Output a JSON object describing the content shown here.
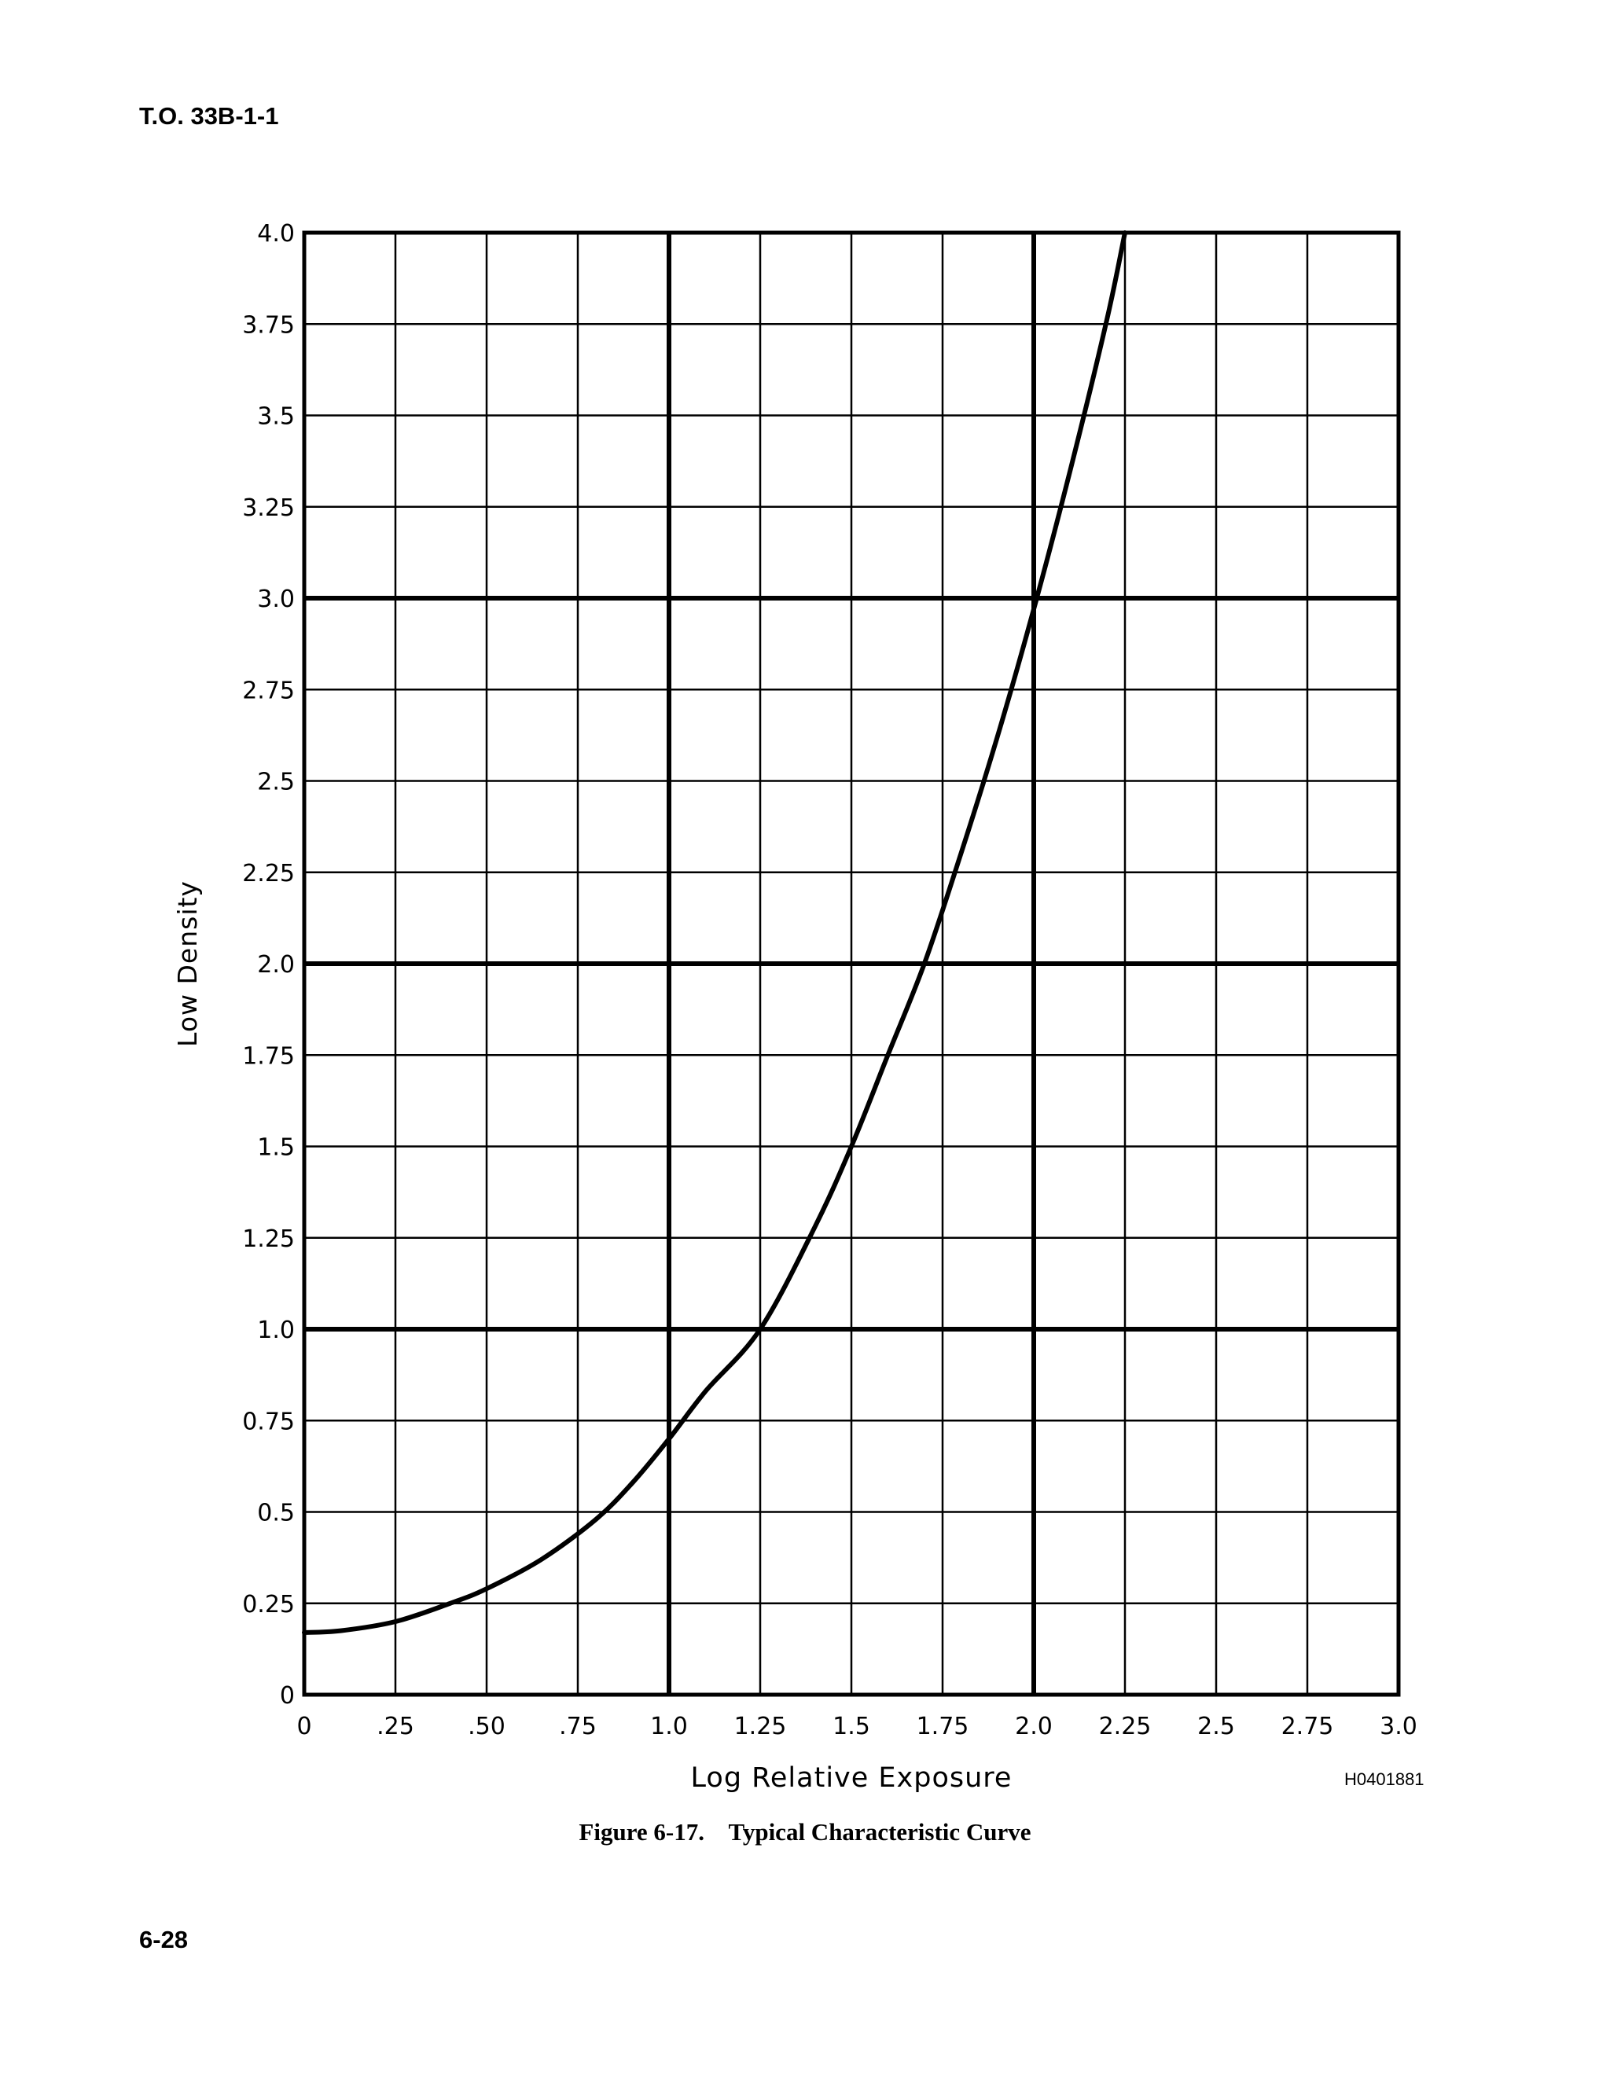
{
  "page": {
    "header": "T.O. 33B-1-1",
    "page_number": "6-28",
    "figure_id": "H0401881",
    "caption_number": "Figure 6-17.",
    "caption_title": "Typical Characteristic Curve"
  },
  "chart_data": {
    "type": "line",
    "xlabel": "Log Relative Exposure",
    "ylabel": "Low Density",
    "xlim": [
      0,
      3.0
    ],
    "ylim": [
      0,
      4.0
    ],
    "grid": true,
    "x_ticks": [
      {
        "value": 0,
        "label": "0"
      },
      {
        "value": 0.25,
        "label": ".25"
      },
      {
        "value": 0.5,
        "label": ".50"
      },
      {
        "value": 0.75,
        "label": ".75"
      },
      {
        "value": 1.0,
        "label": "1.0"
      },
      {
        "value": 1.25,
        "label": "1.25"
      },
      {
        "value": 1.5,
        "label": "1.5"
      },
      {
        "value": 1.75,
        "label": "1.75"
      },
      {
        "value": 2.0,
        "label": "2.0"
      },
      {
        "value": 2.25,
        "label": "2.25"
      },
      {
        "value": 2.5,
        "label": "2.5"
      },
      {
        "value": 2.75,
        "label": "2.75"
      },
      {
        "value": 3.0,
        "label": "3.0"
      }
    ],
    "y_ticks": [
      {
        "value": 0,
        "label": "0"
      },
      {
        "value": 0.25,
        "label": "0.25"
      },
      {
        "value": 0.5,
        "label": "0.5"
      },
      {
        "value": 0.75,
        "label": "0.75"
      },
      {
        "value": 1.0,
        "label": "1.0"
      },
      {
        "value": 1.25,
        "label": "1.25"
      },
      {
        "value": 1.5,
        "label": "1.5"
      },
      {
        "value": 1.75,
        "label": "1.75"
      },
      {
        "value": 2.0,
        "label": "2.0"
      },
      {
        "value": 2.25,
        "label": "2.25"
      },
      {
        "value": 2.5,
        "label": "2.5"
      },
      {
        "value": 2.75,
        "label": "2.75"
      },
      {
        "value": 3.0,
        "label": "3.0"
      },
      {
        "value": 3.25,
        "label": "3.25"
      },
      {
        "value": 3.5,
        "label": "3.5"
      },
      {
        "value": 3.75,
        "label": "3.75"
      },
      {
        "value": 4.0,
        "label": "4.0"
      }
    ],
    "major_grid_x": [
      1.0,
      2.0
    ],
    "major_grid_y": [
      1.0,
      2.0,
      3.0
    ],
    "series": [
      {
        "x": [
          0,
          0.1,
          0.25,
          0.4,
          0.5,
          0.65,
          0.8,
          0.9,
          1.0,
          1.1,
          1.25,
          1.4,
          1.5,
          1.6,
          1.7,
          1.8,
          1.9,
          2.0,
          2.1,
          2.2,
          2.25
        ],
        "y": [
          0.17,
          0.175,
          0.2,
          0.25,
          0.29,
          0.37,
          0.48,
          0.58,
          0.7,
          0.83,
          1.0,
          1.28,
          1.5,
          1.75,
          2.0,
          2.3,
          2.62,
          2.97,
          3.35,
          3.76,
          4.0
        ]
      }
    ]
  }
}
